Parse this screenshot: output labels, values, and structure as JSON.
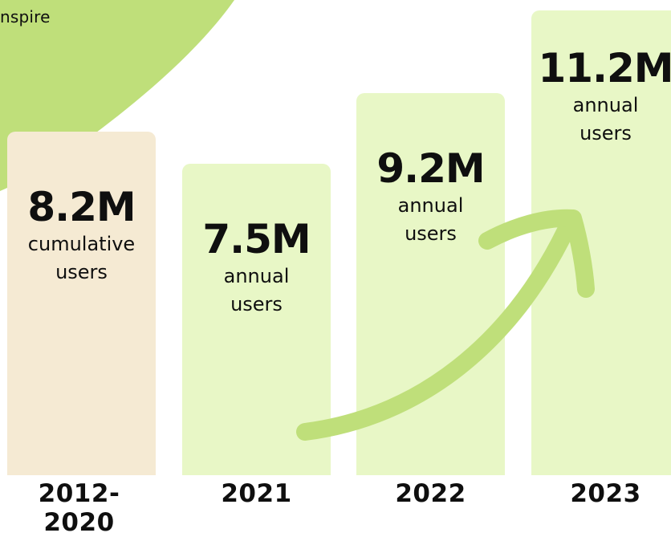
{
  "corner_text": "nspire",
  "colors": {
    "accent_green": "#bfdf7a",
    "bar_green": "#e8f7c6",
    "bar_beige": "#f5ead3",
    "text": "#0f0f0f"
  },
  "chart_data": {
    "type": "bar",
    "categories": [
      "2012-2020",
      "2021",
      "2022",
      "2023"
    ],
    "values": [
      8.2,
      7.5,
      9.2,
      11.2
    ],
    "unit": "M",
    "value_labels": [
      "8.2M",
      "7.5M",
      "9.2M",
      "11.2M"
    ],
    "sub_labels": [
      [
        "cumulative",
        "users"
      ],
      [
        "annual",
        "users"
      ],
      [
        "annual",
        "users"
      ],
      [
        "annual",
        "users"
      ]
    ],
    "title": "",
    "xlabel": "",
    "ylabel": "",
    "ylim": [
      0,
      11.2
    ],
    "grid": false,
    "annotation": "upward-trend-arrow"
  }
}
